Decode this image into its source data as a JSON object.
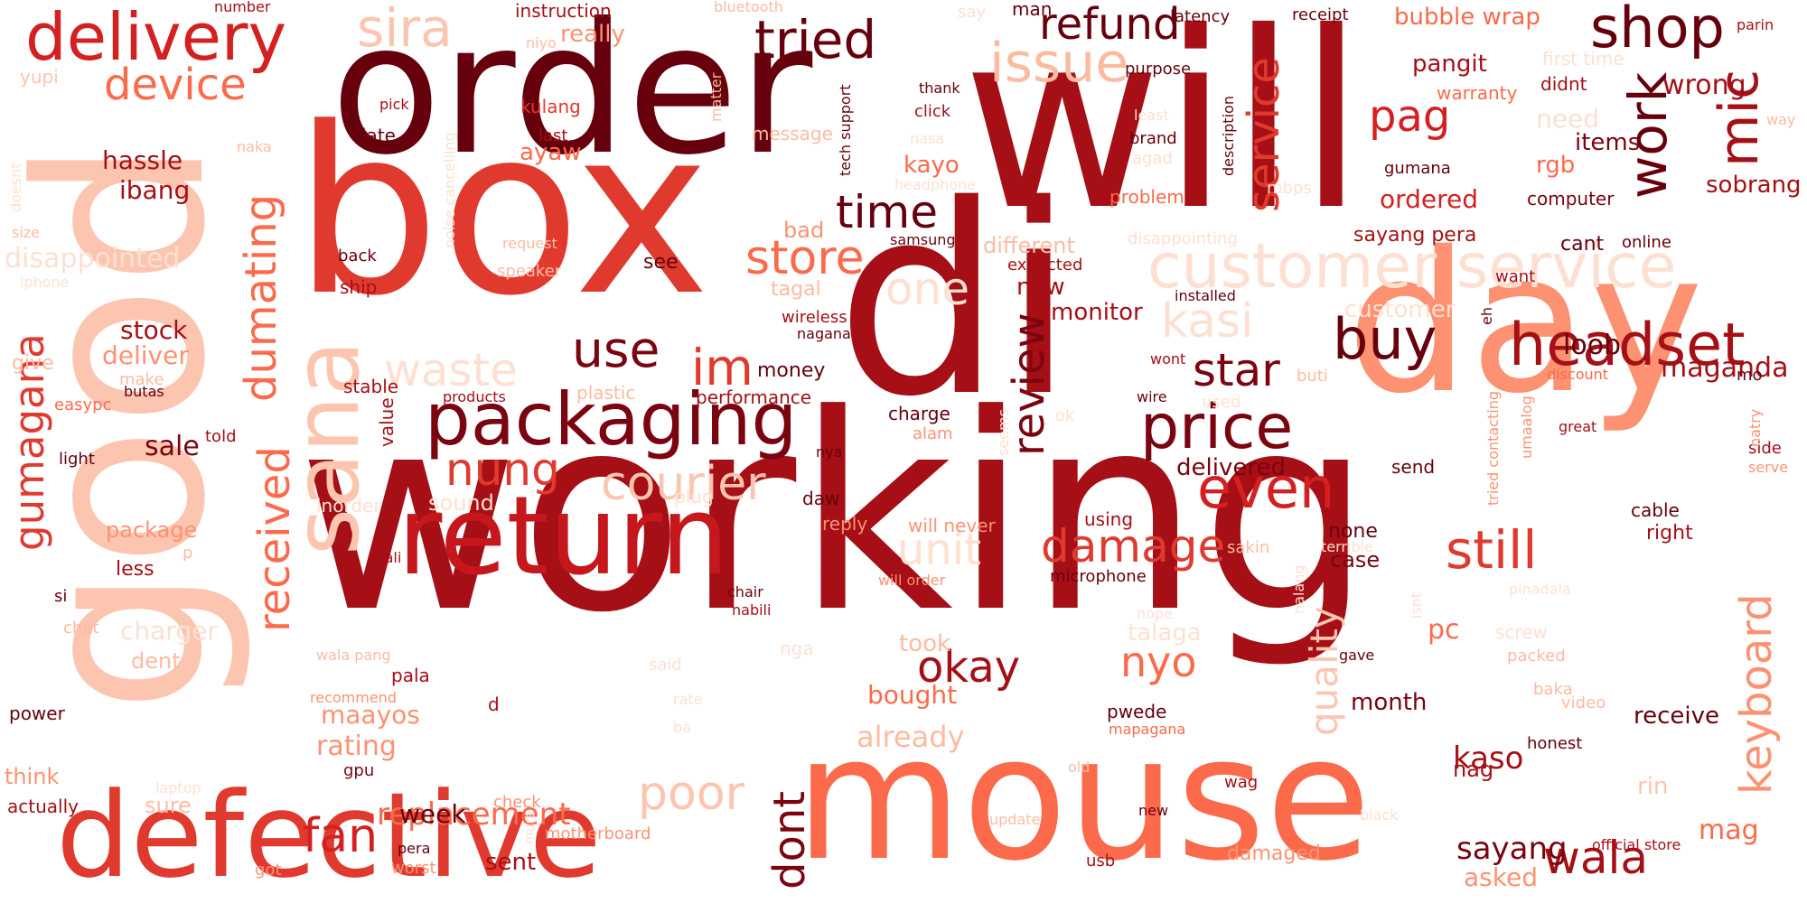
{
  "words": [
    {
      "text": "working",
      "color": "#a50f15"
    },
    {
      "text": "di",
      "color": "#a50f15"
    },
    {
      "text": "will",
      "color": "#a50f15"
    },
    {
      "text": "order",
      "color": "#67000d"
    },
    {
      "text": "box",
      "color": "#e03a2f"
    },
    {
      "text": "good",
      "color": "#fcc5b0"
    },
    {
      "text": "mouse",
      "color": "#fb6a4a"
    },
    {
      "text": "day",
      "color": "#fc9272"
    },
    {
      "text": "defective",
      "color": "#e03a2f"
    },
    {
      "text": "return",
      "color": "#c5171c"
    },
    {
      "text": "sana",
      "color": "#fcc5b0"
    },
    {
      "text": "packaging",
      "color": "#7a0410"
    },
    {
      "text": "customer service",
      "color": "#fee0d2"
    },
    {
      "text": "delivery",
      "color": "#d42020"
    },
    {
      "text": "headset",
      "color": "#a50f15"
    },
    {
      "text": "price",
      "color": "#7a0410"
    },
    {
      "text": "shop",
      "color": "#67000d"
    },
    {
      "text": "refund",
      "color": "#67000d"
    },
    {
      "text": "tried",
      "color": "#67000d"
    },
    {
      "text": "sira",
      "color": "#fcc5b0"
    },
    {
      "text": "issue",
      "color": "#fcbba1"
    },
    {
      "text": "device",
      "color": "#fb6a4a"
    },
    {
      "text": "work",
      "color": "#67000d"
    },
    {
      "text": "mic",
      "color": "#a50f15"
    },
    {
      "text": "service",
      "color": "#e03a2f"
    },
    {
      "text": "pag",
      "color": "#d42020"
    },
    {
      "text": "time",
      "color": "#67000d"
    },
    {
      "text": "store",
      "color": "#fb6a4a"
    },
    {
      "text": "dumating",
      "color": "#fb6a4a"
    },
    {
      "text": "gumagana",
      "color": "#e03a2f"
    },
    {
      "text": "received",
      "color": "#fb6a4a"
    },
    {
      "text": "one",
      "color": "#fee0d2"
    },
    {
      "text": "use",
      "color": "#7a0410"
    },
    {
      "text": "im",
      "color": "#e03a2f"
    },
    {
      "text": "waste",
      "color": "#fee0d2"
    },
    {
      "text": "kasi",
      "color": "#fee0d2"
    },
    {
      "text": "buy",
      "color": "#67000d"
    },
    {
      "text": "star",
      "color": "#7a0410"
    },
    {
      "text": "review",
      "color": "#7a0410"
    },
    {
      "text": "even",
      "color": "#d42020"
    },
    {
      "text": "nung",
      "color": "#e03a2f"
    },
    {
      "text": "courier",
      "color": "#fcc5b0"
    },
    {
      "text": "unit",
      "color": "#fee0d2"
    },
    {
      "text": "damage",
      "color": "#e03a2f"
    },
    {
      "text": "still",
      "color": "#e03a2f"
    },
    {
      "text": "quality",
      "color": "#fcc5b0"
    },
    {
      "text": "keyboard",
      "color": "#fc9272"
    },
    {
      "text": "okay",
      "color": "#a50f15"
    },
    {
      "text": "nyo",
      "color": "#fb6a4a"
    },
    {
      "text": "poor",
      "color": "#fcc5b0"
    },
    {
      "text": "fan",
      "color": "#d42020"
    },
    {
      "text": "dont",
      "color": "#7a0410"
    },
    {
      "text": "wala",
      "color": "#a50f15"
    },
    {
      "text": "replacement",
      "color": "#fb6a4a"
    },
    {
      "text": "sayang",
      "color": "#7a0410"
    },
    {
      "text": "kaso",
      "color": "#a50f15"
    },
    {
      "text": "mag",
      "color": "#fb6a4a"
    },
    {
      "text": "maganda",
      "color": "#a50f15"
    },
    {
      "text": "loob",
      "color": "#67000d"
    },
    {
      "text": "wrong",
      "color": "#a50f15"
    },
    {
      "text": "sobrang",
      "color": "#a50f15"
    },
    {
      "text": "bubble wrap",
      "color": "#fb6a4a"
    },
    {
      "text": "pangit",
      "color": "#a50f15"
    },
    {
      "text": "ordered",
      "color": "#d42020"
    },
    {
      "text": "need",
      "color": "#fee0d2"
    },
    {
      "text": "rgb",
      "color": "#fb6a4a"
    },
    {
      "text": "items",
      "color": "#7a0410"
    },
    {
      "text": "hassle",
      "color": "#a50f15"
    },
    {
      "text": "ibang",
      "color": "#a50f15"
    },
    {
      "text": "disappointed",
      "color": "#fee0d2"
    },
    {
      "text": "stock",
      "color": "#a50f15"
    },
    {
      "text": "deliver",
      "color": "#fc9272"
    },
    {
      "text": "sale",
      "color": "#7a0410"
    },
    {
      "text": "package",
      "color": "#fc9272"
    },
    {
      "text": "less",
      "color": "#a50f15"
    },
    {
      "text": "charger",
      "color": "#fee0d2"
    },
    {
      "text": "rating",
      "color": "#fc9272"
    },
    {
      "text": "maayos",
      "color": "#fc9272"
    },
    {
      "text": "week",
      "color": "#67000d"
    },
    {
      "text": "already",
      "color": "#fcbba1"
    },
    {
      "text": "bought",
      "color": "#fb6a4a"
    },
    {
      "text": "took",
      "color": "#fcbba1"
    },
    {
      "text": "talaga",
      "color": "#fee0d2"
    },
    {
      "text": "monitor",
      "color": "#a50f15"
    },
    {
      "text": "customer",
      "color": "#fee0d2"
    },
    {
      "text": "delivered",
      "color": "#7a0410"
    },
    {
      "text": "month",
      "color": "#7a0410"
    },
    {
      "text": "pc",
      "color": "#fb6a4a"
    },
    {
      "text": "receive",
      "color": "#67000d"
    },
    {
      "text": "asked",
      "color": "#fc9272"
    },
    {
      "text": "yupi",
      "color": "#fcc5b0"
    },
    {
      "text": "really",
      "color": "#fc9272"
    },
    {
      "text": "instruction",
      "color": "#a50f15"
    },
    {
      "text": "kulang",
      "color": "#e03a2f"
    },
    {
      "text": "late",
      "color": "#67000d"
    },
    {
      "text": "last",
      "color": "#a50f15"
    },
    {
      "text": "ayaw",
      "color": "#fb6a4a"
    },
    {
      "text": "kayo",
      "color": "#fb6a4a"
    },
    {
      "text": "bad",
      "color": "#fc9272"
    },
    {
      "text": "different",
      "color": "#fcbba1"
    },
    {
      "text": "tagal",
      "color": "#fcbba1"
    },
    {
      "text": "now",
      "color": "#a50f15"
    },
    {
      "text": "see",
      "color": "#67000d"
    },
    {
      "text": "message",
      "color": "#fcbba1"
    },
    {
      "text": "money",
      "color": "#67000d"
    },
    {
      "text": "performance",
      "color": "#a50f15"
    },
    {
      "text": "plastic",
      "color": "#fcbba1"
    },
    {
      "text": "value",
      "color": "#a50f15"
    },
    {
      "text": "stable",
      "color": "#a50f15"
    },
    {
      "text": "ship",
      "color": "#a50f15"
    },
    {
      "text": "back",
      "color": "#67000d"
    },
    {
      "text": "give",
      "color": "#fcbba1"
    },
    {
      "text": "make",
      "color": "#fcbba1"
    },
    {
      "text": "butas",
      "color": "#67000d"
    },
    {
      "text": "easypc",
      "color": "#fb6a4a"
    },
    {
      "text": "light",
      "color": "#67000d"
    },
    {
      "text": "told",
      "color": "#a50f15"
    },
    {
      "text": "si",
      "color": "#67000d"
    },
    {
      "text": "chat",
      "color": "#fcbba1"
    },
    {
      "text": "dent",
      "color": "#fcbba1"
    },
    {
      "text": "power",
      "color": "#67000d"
    },
    {
      "text": "think",
      "color": "#fc9272"
    },
    {
      "text": "actually",
      "color": "#a50f15"
    },
    {
      "text": "sure",
      "color": "#fcbba1"
    },
    {
      "text": "got",
      "color": "#fc9272"
    },
    {
      "text": "gpu",
      "color": "#7a0410"
    },
    {
      "text": "check",
      "color": "#fc9272"
    },
    {
      "text": "motherboard",
      "color": "#fc9272"
    },
    {
      "text": "worst",
      "color": "#fc9272"
    },
    {
      "text": "pera",
      "color": "#67000d"
    },
    {
      "text": "sent",
      "color": "#a50f15"
    },
    {
      "text": "nga",
      "color": "#fee0d2"
    },
    {
      "text": "pala",
      "color": "#a50f15"
    },
    {
      "text": "recommend",
      "color": "#fc9272"
    },
    {
      "text": "wala pang",
      "color": "#fcbba1"
    },
    {
      "text": "mali",
      "color": "#a50f15"
    },
    {
      "text": "inorder",
      "color": "#fee0d2"
    },
    {
      "text": "sound",
      "color": "#fee0d2"
    },
    {
      "text": "products",
      "color": "#a50f15"
    },
    {
      "text": "plug",
      "color": "#fee0d2"
    },
    {
      "text": "daw",
      "color": "#67000d"
    },
    {
      "text": "reply",
      "color": "#fc9272"
    },
    {
      "text": "nabili",
      "color": "#a50f15"
    },
    {
      "text": "chair",
      "color": "#67000d"
    },
    {
      "text": "will order",
      "color": "#fc9272"
    },
    {
      "text": "will never",
      "color": "#fc9272"
    },
    {
      "text": "charge",
      "color": "#67000d"
    },
    {
      "text": "alam",
      "color": "#fc9272"
    },
    {
      "text": "samsung",
      "color": "#67000d"
    },
    {
      "text": "wireless",
      "color": "#a50f15"
    },
    {
      "text": "nagana",
      "color": "#67000d"
    },
    {
      "text": "request",
      "color": "#fcbba1"
    },
    {
      "text": "speaker",
      "color": "#fcbba1"
    },
    {
      "text": "expected",
      "color": "#a50f15"
    },
    {
      "text": "installed",
      "color": "#67000d"
    },
    {
      "text": "using",
      "color": "#a50f15"
    },
    {
      "text": "microphone",
      "color": "#67000d"
    },
    {
      "text": "sakin",
      "color": "#fcbba1"
    },
    {
      "text": "nope",
      "color": "#fee0d2"
    },
    {
      "text": "pwede",
      "color": "#67000d"
    },
    {
      "text": "mapagana",
      "color": "#fb6a4a"
    },
    {
      "text": "damaged",
      "color": "#fc9272"
    },
    {
      "text": "update",
      "color": "#fcbba1"
    },
    {
      "text": "new",
      "color": "#67000d"
    },
    {
      "text": "wag",
      "color": "#a50f15"
    },
    {
      "text": "usb",
      "color": "#a50f15"
    },
    {
      "text": "old",
      "color": "#fcbba1"
    },
    {
      "text": "none",
      "color": "#67000d"
    },
    {
      "text": "case",
      "color": "#7a0410"
    },
    {
      "text": "terrible",
      "color": "#fee0d2"
    },
    {
      "text": "nag",
      "color": "#a50f15"
    },
    {
      "text": "honest",
      "color": "#67000d"
    },
    {
      "text": "official store",
      "color": "#a50f15"
    },
    {
      "text": "baka",
      "color": "#fcbba1"
    },
    {
      "text": "video",
      "color": "#fcbba1"
    },
    {
      "text": "packed",
      "color": "#fcbba1"
    },
    {
      "text": "gave",
      "color": "#67000d"
    },
    {
      "text": "screw",
      "color": "#fee0d2"
    },
    {
      "text": "pinadala",
      "color": "#fee0d2"
    },
    {
      "text": "right",
      "color": "#a50f15"
    },
    {
      "text": "cable",
      "color": "#67000d"
    },
    {
      "text": "send",
      "color": "#67000d"
    },
    {
      "text": "great",
      "color": "#a50f15"
    },
    {
      "text": "side",
      "color": "#a50f15"
    },
    {
      "text": "serve",
      "color": "#fc9272"
    },
    {
      "text": "natry",
      "color": "#fc9272"
    },
    {
      "text": "mo",
      "color": "#67000d"
    },
    {
      "text": "discount",
      "color": "#fb6a4a"
    },
    {
      "text": "umaalog",
      "color": "#fc9272"
    },
    {
      "text": "tried contacting",
      "color": "#fc9272"
    },
    {
      "text": "rin",
      "color": "#fcc5b0"
    },
    {
      "text": "cant",
      "color": "#67000d"
    },
    {
      "text": "online",
      "color": "#67000d"
    },
    {
      "text": "want",
      "color": "#a50f15"
    },
    {
      "text": "computer",
      "color": "#7a0410"
    },
    {
      "text": "sayang pera",
      "color": "#a50f15"
    },
    {
      "text": "gumana",
      "color": "#67000d"
    },
    {
      "text": "warranty",
      "color": "#fb6a4a"
    },
    {
      "text": "didnt",
      "color": "#a50f15"
    },
    {
      "text": "receipt",
      "color": "#67000d"
    },
    {
      "text": "latency",
      "color": "#67000d"
    },
    {
      "text": "man",
      "color": "#67000d"
    },
    {
      "text": "purpose",
      "color": "#67000d"
    },
    {
      "text": "brand",
      "color": "#67000d"
    },
    {
      "text": "thank",
      "color": "#67000d"
    },
    {
      "text": "click",
      "color": "#a50f15"
    },
    {
      "text": "tech support",
      "color": "#67000d"
    },
    {
      "text": "pick",
      "color": "#a50f15"
    },
    {
      "text": "niyo",
      "color": "#fcbba1"
    },
    {
      "text": "number",
      "color": "#a50f15"
    },
    {
      "text": "bluetooth",
      "color": "#fcbba1"
    },
    {
      "text": "matter",
      "color": "#fcbba1"
    },
    {
      "text": "naka",
      "color": "#fcbba1"
    },
    {
      "text": "doesnt",
      "color": "#fee0d2"
    },
    {
      "text": "size",
      "color": "#fcbba1"
    },
    {
      "text": "iphone",
      "color": "#fee0d2"
    },
    {
      "text": "noise cancelling",
      "color": "#fee0d2"
    },
    {
      "text": "wont",
      "color": "#a50f15"
    },
    {
      "text": "wire",
      "color": "#67000d"
    },
    {
      "text": "ok",
      "color": "#fee0d2"
    },
    {
      "text": "used",
      "color": "#fee0d2"
    },
    {
      "text": "buti",
      "color": "#fcbba1"
    },
    {
      "text": "seems",
      "color": "#fee0d2"
    },
    {
      "text": "nya",
      "color": "#67000d"
    },
    {
      "text": "problem",
      "color": "#fb6a4a"
    },
    {
      "text": "description",
      "color": "#67000d"
    },
    {
      "text": "disappointing",
      "color": "#fee0d2"
    },
    {
      "text": "agad",
      "color": "#fee0d2"
    },
    {
      "text": "least",
      "color": "#fee0d2"
    },
    {
      "text": "mbps",
      "color": "#fee0d2"
    },
    {
      "text": "nasa",
      "color": "#fee0d2"
    },
    {
      "text": "headphone",
      "color": "#fee0d2"
    },
    {
      "text": "first time",
      "color": "#fee0d2"
    },
    {
      "text": "parin",
      "color": "#a50f15"
    },
    {
      "text": "way",
      "color": "#fcbba1"
    },
    {
      "text": "eh",
      "color": "#67000d"
    },
    {
      "text": "nalang",
      "color": "#fee0d2"
    },
    {
      "text": "isnt",
      "color": "#fee0d2"
    },
    {
      "text": "laptop",
      "color": "#fee0d2"
    },
    {
      "text": "black",
      "color": "#fee0d2"
    },
    {
      "text": "rate",
      "color": "#fee0d2"
    },
    {
      "text": "said",
      "color": "#fee0d2"
    },
    {
      "text": "mura",
      "color": "#fee0d2"
    },
    {
      "text": "d",
      "color": "#a50f15"
    },
    {
      "text": "p",
      "color": "#fcbba1"
    },
    {
      "text": "say",
      "color": "#fee0d2"
    },
    {
      "text": "ba",
      "color": "#fee0d2"
    }
  ]
}
